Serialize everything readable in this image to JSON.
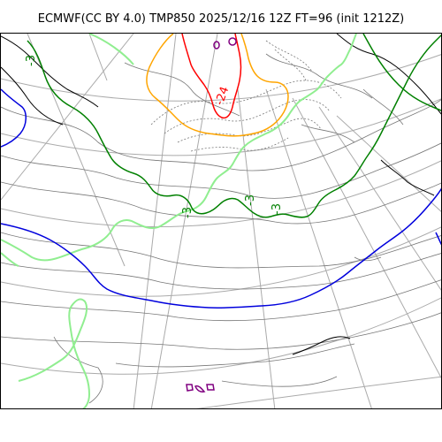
{
  "title": "ECMWF(CC BY 4.0) TMP850 2025/12/16 12Z FT=96 (init 1212Z)",
  "contour_labels": [
    {
      "text": "-3",
      "color": "#008000"
    },
    {
      "text": "-3",
      "color": "#008000"
    },
    {
      "text": "-3",
      "color": "#008000"
    },
    {
      "text": "-3",
      "color": "#008000"
    },
    {
      "text": "-24",
      "color": "#ff0000"
    }
  ],
  "colors": {
    "coastline": "#000000",
    "graticule": "#aaaaaa",
    "isotherm_zero": "#0000dd",
    "isotherm_minus3": "#008000",
    "isotherm_minus6": "#90ee90",
    "isotherm_minus18": "#ffa500",
    "isotherm_minus24": "#ff0000",
    "isotherm_minus30": "#800080"
  }
}
